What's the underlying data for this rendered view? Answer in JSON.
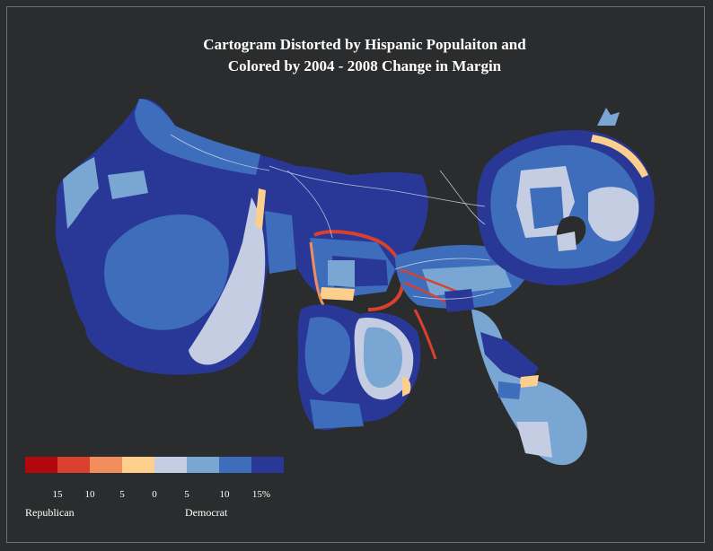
{
  "title": {
    "line1": "Cartogram Distorted by Hispanic Populaiton and",
    "line2": "Colored by 2004 - 2008 Change in Margin"
  },
  "colors": {
    "background": "#2b2c2d",
    "rep_15": "#b3070e",
    "rep_10": "#d9402e",
    "rep_5": "#f28d5c",
    "tossup_rep": "#fcd08c",
    "dem_0": "#c5cde3",
    "dem_5": "#7aa6d3",
    "dem_10": "#3d6dbb",
    "dem_15": "#293796"
  },
  "legend": {
    "swatches": [
      "#b3070e",
      "#d9402e",
      "#f28d5c",
      "#fcd08c",
      "#c5cde3",
      "#7aa6d3",
      "#3d6dbb",
      "#293796"
    ],
    "ticks": [
      "15",
      "10",
      "5",
      "0",
      "5",
      "10",
      "15%"
    ],
    "republican_label": "Republican",
    "democrat_label": "Democrat"
  }
}
